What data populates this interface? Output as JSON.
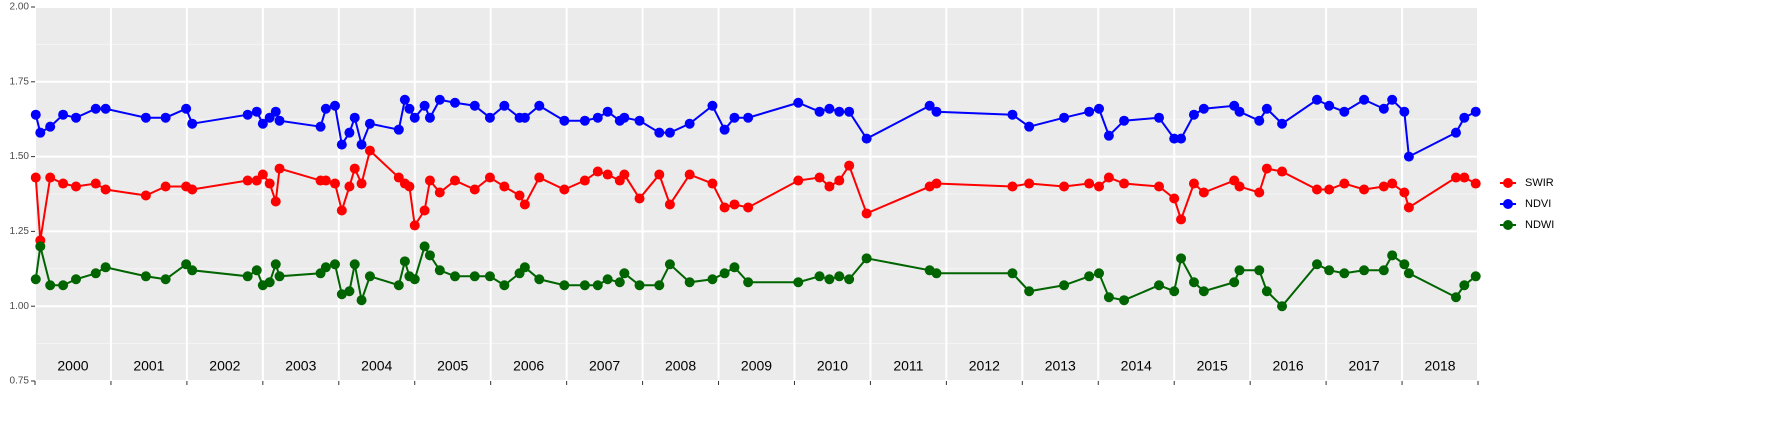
{
  "chart_data": {
    "type": "line",
    "x": [
      2000.01,
      2000.07,
      2000.2,
      2000.37,
      2000.54,
      2000.8,
      2000.93,
      2001.46,
      2001.72,
      2001.99,
      2002.07,
      2002.8,
      2002.92,
      2003.0,
      2003.09,
      2003.17,
      2003.22,
      2003.76,
      2003.83,
      2003.95,
      2004.04,
      2004.14,
      2004.21,
      2004.3,
      2004.41,
      2004.79,
      2004.87,
      2004.93,
      2005.0,
      2005.13,
      2005.2,
      2005.33,
      2005.53,
      2005.79,
      2005.99,
      2006.18,
      2006.38,
      2006.45,
      2006.64,
      2006.97,
      2007.24,
      2007.41,
      2007.54,
      2007.7,
      2007.76,
      2007.96,
      2008.22,
      2008.36,
      2008.62,
      2008.92,
      2009.08,
      2009.21,
      2009.39,
      2010.05,
      2010.33,
      2010.46,
      2010.59,
      2010.72,
      2010.95,
      2011.78,
      2011.87,
      2012.87,
      2013.09,
      2013.55,
      2013.88,
      2014.01,
      2014.14,
      2014.34,
      2014.8,
      2015.0,
      2015.09,
      2015.26,
      2015.39,
      2015.79,
      2015.86,
      2016.12,
      2016.22,
      2016.42,
      2016.88,
      2017.04,
      2017.24,
      2017.5,
      2017.76,
      2017.87,
      2018.03,
      2018.09,
      2018.71,
      2018.82,
      2018.97
    ],
    "series": [
      {
        "name": "SWIR",
        "color": "#ff0000",
        "values": [
          1.43,
          1.22,
          1.43,
          1.41,
          1.4,
          1.41,
          1.39,
          1.37,
          1.4,
          1.4,
          1.39,
          1.42,
          1.42,
          1.44,
          1.41,
          1.35,
          1.46,
          1.42,
          1.42,
          1.41,
          1.32,
          1.4,
          1.46,
          1.41,
          1.52,
          1.43,
          1.41,
          1.4,
          1.27,
          1.32,
          1.42,
          1.38,
          1.42,
          1.39,
          1.43,
          1.4,
          1.37,
          1.34,
          1.43,
          1.39,
          1.42,
          1.45,
          1.44,
          1.42,
          1.44,
          1.36,
          1.44,
          1.34,
          1.44,
          1.41,
          1.33,
          1.34,
          1.33,
          1.42,
          1.43,
          1.4,
          1.42,
          1.47,
          1.31,
          1.4,
          1.41,
          1.4,
          1.41,
          1.4,
          1.41,
          1.4,
          1.43,
          1.41,
          1.4,
          1.36,
          1.29,
          1.41,
          1.38,
          1.42,
          1.4,
          1.38,
          1.46,
          1.45,
          1.39,
          1.39,
          1.41,
          1.39,
          1.4,
          1.41,
          1.38,
          1.33,
          1.43,
          1.43,
          1.41
        ]
      },
      {
        "name": "NDVI",
        "color": "#0000ff",
        "values": [
          1.64,
          1.58,
          1.6,
          1.64,
          1.63,
          1.66,
          1.66,
          1.63,
          1.63,
          1.66,
          1.61,
          1.64,
          1.65,
          1.61,
          1.63,
          1.65,
          1.62,
          1.6,
          1.66,
          1.67,
          1.54,
          1.58,
          1.63,
          1.54,
          1.61,
          1.59,
          1.69,
          1.66,
          1.63,
          1.67,
          1.63,
          1.69,
          1.68,
          1.67,
          1.63,
          1.67,
          1.63,
          1.63,
          1.67,
          1.62,
          1.62,
          1.63,
          1.65,
          1.62,
          1.63,
          1.62,
          1.58,
          1.58,
          1.61,
          1.67,
          1.59,
          1.63,
          1.63,
          1.68,
          1.65,
          1.66,
          1.65,
          1.65,
          1.56,
          1.67,
          1.65,
          1.64,
          1.6,
          1.63,
          1.65,
          1.66,
          1.57,
          1.62,
          1.63,
          1.56,
          1.56,
          1.64,
          1.66,
          1.67,
          1.65,
          1.62,
          1.66,
          1.61,
          1.69,
          1.67,
          1.65,
          1.69,
          1.66,
          1.69,
          1.65,
          1.5,
          1.58,
          1.63,
          1.65
        ]
      },
      {
        "name": "NDWI",
        "color": "#006400",
        "values": [
          1.09,
          1.2,
          1.07,
          1.07,
          1.09,
          1.11,
          1.13,
          1.1,
          1.09,
          1.14,
          1.12,
          1.1,
          1.12,
          1.07,
          1.08,
          1.14,
          1.1,
          1.11,
          1.13,
          1.14,
          1.04,
          1.05,
          1.14,
          1.02,
          1.1,
          1.07,
          1.15,
          1.1,
          1.09,
          1.2,
          1.17,
          1.12,
          1.1,
          1.1,
          1.1,
          1.07,
          1.11,
          1.13,
          1.09,
          1.07,
          1.07,
          1.07,
          1.09,
          1.08,
          1.11,
          1.07,
          1.07,
          1.14,
          1.08,
          1.09,
          1.11,
          1.13,
          1.08,
          1.08,
          1.1,
          1.09,
          1.1,
          1.09,
          1.16,
          1.12,
          1.11,
          1.11,
          1.05,
          1.07,
          1.1,
          1.11,
          1.03,
          1.02,
          1.07,
          1.05,
          1.16,
          1.08,
          1.05,
          1.08,
          1.12,
          1.12,
          1.05,
          1.0,
          1.14,
          1.12,
          1.11,
          1.12,
          1.12,
          1.17,
          1.14,
          1.11,
          1.03,
          1.07,
          1.1
        ]
      }
    ],
    "xlim": [
      2000,
      2019
    ],
    "xgrid": [
      2000,
      2001,
      2002,
      2003,
      2004,
      2005,
      2006,
      2007,
      2008,
      2009,
      2010,
      2011,
      2012,
      2013,
      2014,
      2015,
      2016,
      2017,
      2018,
      2019
    ],
    "xticks": [
      {
        "value": 2000.5,
        "label": "2000"
      },
      {
        "value": 2001.5,
        "label": "2001"
      },
      {
        "value": 2002.5,
        "label": "2002"
      },
      {
        "value": 2003.5,
        "label": "2003"
      },
      {
        "value": 2004.5,
        "label": "2004"
      },
      {
        "value": 2005.5,
        "label": "2005"
      },
      {
        "value": 2006.5,
        "label": "2006"
      },
      {
        "value": 2007.5,
        "label": "2007"
      },
      {
        "value": 2008.5,
        "label": "2008"
      },
      {
        "value": 2009.5,
        "label": "2009"
      },
      {
        "value": 2010.5,
        "label": "2010"
      },
      {
        "value": 2011.5,
        "label": "2011"
      },
      {
        "value": 2012.5,
        "label": "2012"
      },
      {
        "value": 2013.5,
        "label": "2013"
      },
      {
        "value": 2014.5,
        "label": "2014"
      },
      {
        "value": 2015.5,
        "label": "2015"
      },
      {
        "value": 2016.5,
        "label": "2016"
      },
      {
        "value": 2017.5,
        "label": "2017"
      },
      {
        "value": 2018.5,
        "label": "2018"
      }
    ],
    "ylim": [
      0.75,
      2
    ],
    "yticks": [
      {
        "value": 0.75,
        "label": "0.75"
      },
      {
        "value": 1,
        "label": "1.00"
      },
      {
        "value": 1.25,
        "label": "1.25"
      },
      {
        "value": 1.5,
        "label": "1.50"
      },
      {
        "value": 1.75,
        "label": "1.75"
      },
      {
        "value": 2,
        "label": "2.00"
      }
    ],
    "yminor": [
      0.875,
      1.125,
      1.375,
      1.625,
      1.875
    ],
    "grid": true,
    "legend": "right"
  }
}
